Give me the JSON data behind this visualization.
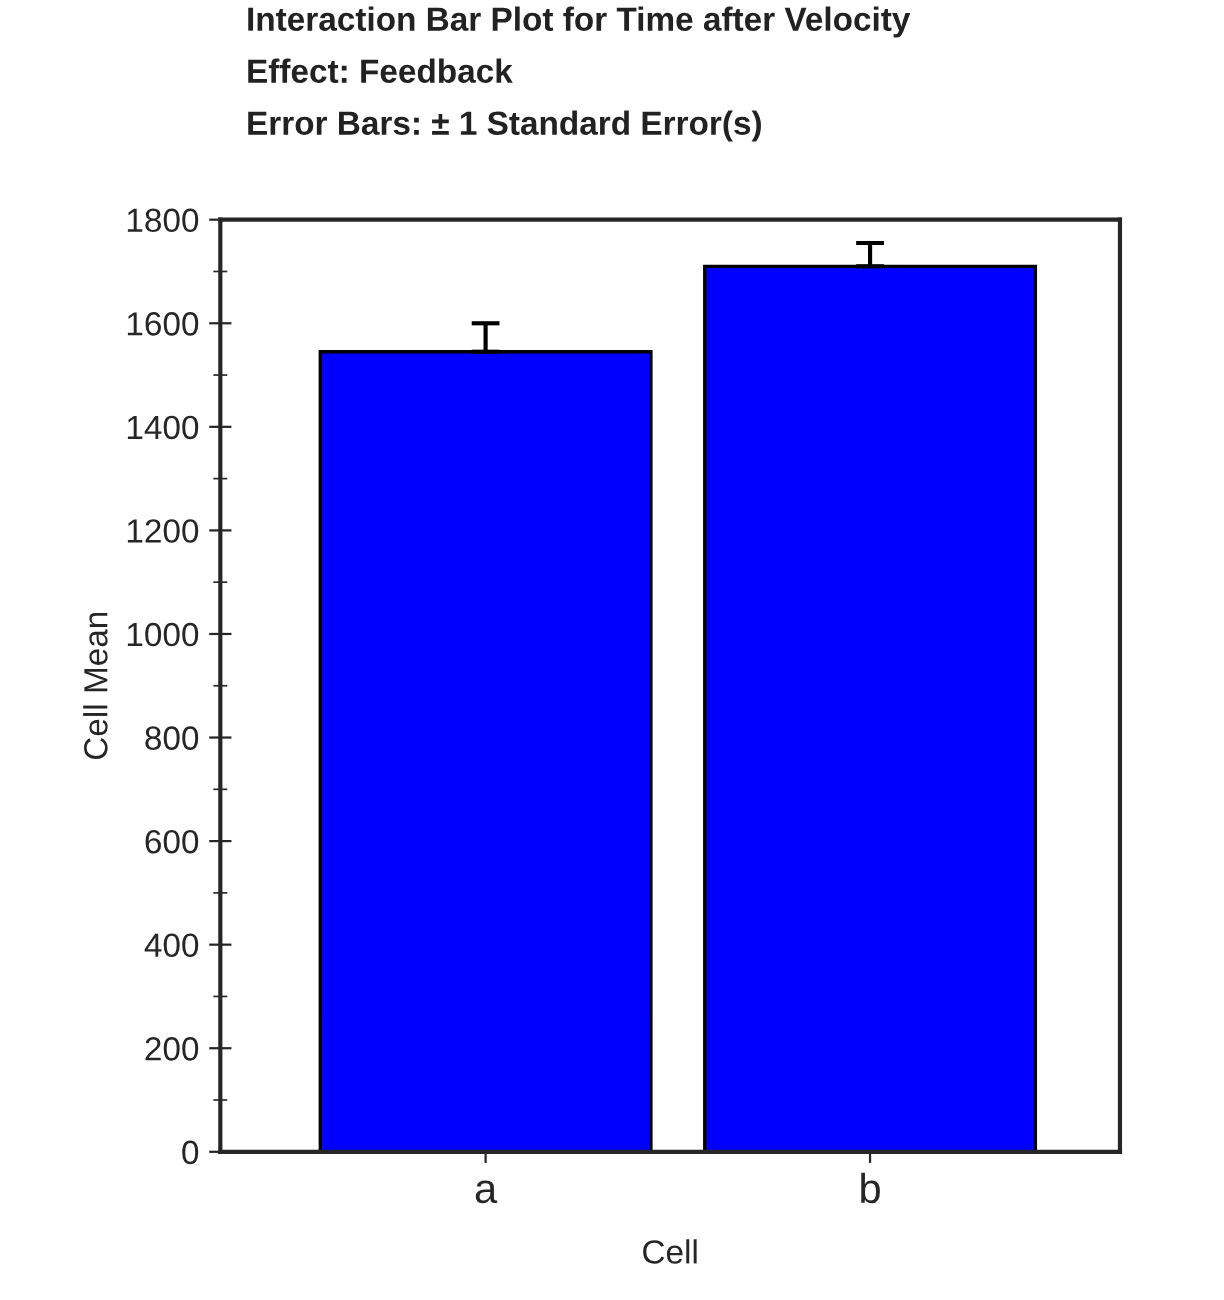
{
  "chart_data": {
    "type": "bar",
    "title": "Interaction Bar Plot for Time after Velocity",
    "subtitle": "Effect: Feedback",
    "annotations": [
      "Error Bars: ± 1 Standard Error(s)"
    ],
    "xlabel": "Cell",
    "ylabel": "Cell Mean",
    "categories": [
      "a",
      "b"
    ],
    "values": [
      1545,
      1710
    ],
    "color": "#0000ff",
    "errors": [
      [
        1545,
        1600
      ],
      [
        1710,
        1755
      ]
    ],
    "ylim": [
      0,
      1800
    ],
    "yticks": [
      0,
      200,
      400,
      600,
      800,
      1000,
      1200,
      1400,
      1600,
      1800
    ],
    "grid": false
  }
}
